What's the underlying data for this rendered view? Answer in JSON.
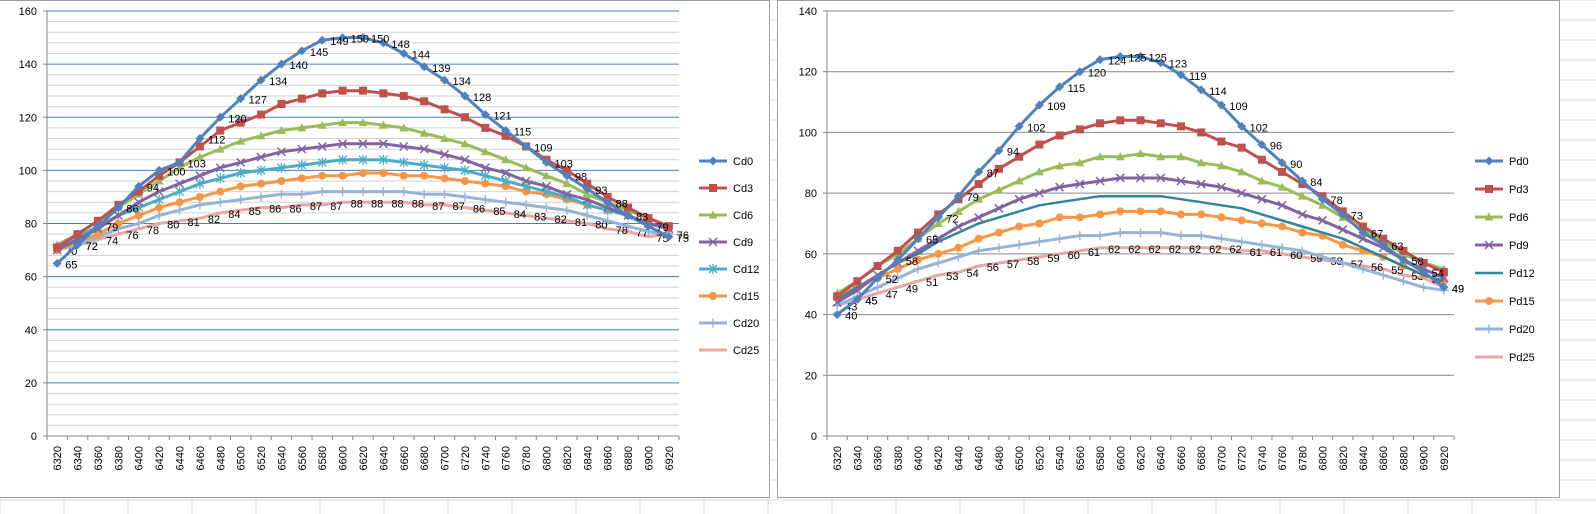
{
  "chart_data": [
    {
      "type": "line",
      "title": "",
      "xlabel": "",
      "ylabel": "",
      "ylim": [
        0,
        160
      ],
      "yticks": [
        0,
        20,
        40,
        60,
        80,
        100,
        120,
        140,
        160
      ],
      "categories": [
        6320,
        6340,
        6360,
        6380,
        6400,
        6420,
        6440,
        6460,
        6480,
        6500,
        6520,
        6540,
        6560,
        6580,
        6600,
        6620,
        6640,
        6660,
        6680,
        6700,
        6720,
        6740,
        6760,
        6780,
        6800,
        6820,
        6840,
        6860,
        6880,
        6900,
        6920
      ],
      "legend_position": "right",
      "series": [
        {
          "name": "Cd0",
          "color": "#4f81bd",
          "marker": "diamond",
          "labeled": true,
          "values": [
            65,
            72,
            79,
            86,
            94,
            100,
            103,
            112,
            120,
            127,
            134,
            140,
            145,
            149,
            150,
            150,
            148,
            144,
            139,
            134,
            128,
            121,
            115,
            109,
            103,
            98,
            93,
            88,
            83,
            79,
            75
          ]
        },
        {
          "name": "Cd3",
          "color": "#c0504d",
          "marker": "square",
          "labeled": false,
          "values": [
            71,
            76,
            81,
            87,
            92,
            98,
            103,
            109,
            115,
            118,
            121,
            125,
            127,
            129,
            130,
            130,
            129,
            128,
            126,
            123,
            120,
            116,
            113,
            109,
            104,
            100,
            95,
            90,
            86,
            82,
            79
          ]
        },
        {
          "name": "Cd6",
          "color": "#9bbb59",
          "marker": "triangle",
          "labeled": false,
          "values": [
            72,
            76,
            81,
            86,
            91,
            96,
            101,
            105,
            108,
            111,
            113,
            115,
            116,
            117,
            118,
            118,
            117,
            116,
            114,
            112,
            110,
            107,
            104,
            101,
            98,
            95,
            91,
            88,
            85,
            82,
            79
          ]
        },
        {
          "name": "Cd9",
          "color": "#8064a2",
          "marker": "x",
          "labeled": false,
          "values": [
            70,
            74,
            78,
            83,
            88,
            92,
            95,
            98,
            101,
            103,
            105,
            107,
            108,
            109,
            110,
            110,
            110,
            109,
            108,
            106,
            104,
            101,
            99,
            96,
            94,
            91,
            89,
            86,
            83,
            80,
            78
          ]
        },
        {
          "name": "Cd12",
          "color": "#4bacc6",
          "marker": "star",
          "labeled": false,
          "values": [
            71,
            75,
            79,
            83,
            86,
            89,
            92,
            95,
            97,
            99,
            100,
            101,
            102,
            103,
            104,
            104,
            104,
            103,
            102,
            101,
            100,
            98,
            96,
            94,
            92,
            90,
            87,
            85,
            83,
            80,
            78
          ]
        },
        {
          "name": "Cd15",
          "color": "#f79646",
          "marker": "circle",
          "labeled": false,
          "values": [
            70,
            73,
            76,
            80,
            83,
            86,
            88,
            90,
            92,
            94,
            95,
            96,
            97,
            98,
            98,
            99,
            99,
            98,
            98,
            97,
            96,
            95,
            94,
            92,
            91,
            89,
            87,
            85,
            83,
            80,
            78
          ]
        },
        {
          "name": "Cd20",
          "color": "#95b3d7",
          "marker": "plus",
          "labeled": false,
          "values": [
            70,
            72,
            75,
            78,
            80,
            83,
            85,
            87,
            88,
            89,
            90,
            91,
            91,
            92,
            92,
            92,
            92,
            92,
            91,
            91,
            90,
            89,
            88,
            87,
            86,
            85,
            83,
            81,
            79,
            77,
            76
          ]
        },
        {
          "name": "Cd25",
          "color": "#e6a8a6",
          "marker": "dash",
          "labeled": true,
          "values": [
            70,
            72,
            74,
            76,
            78,
            80,
            81,
            82,
            84,
            85,
            86,
            86,
            87,
            87,
            88,
            88,
            88,
            88,
            87,
            87,
            86,
            85,
            84,
            83,
            82,
            81,
            80,
            78,
            77,
            75,
            76
          ]
        }
      ]
    },
    {
      "type": "line",
      "title": "",
      "xlabel": "",
      "ylabel": "",
      "ylim": [
        0,
        140
      ],
      "yticks": [
        0,
        20,
        40,
        60,
        80,
        100,
        120,
        140
      ],
      "categories": [
        6320,
        6340,
        6360,
        6380,
        6400,
        6420,
        6440,
        6460,
        6480,
        6500,
        6520,
        6540,
        6560,
        6580,
        6600,
        6620,
        6640,
        6660,
        6680,
        6700,
        6720,
        6740,
        6760,
        6780,
        6800,
        6820,
        6840,
        6860,
        6880,
        6900,
        6920
      ],
      "legend_position": "right",
      "series": [
        {
          "name": "Pd0",
          "color": "#4f81bd",
          "marker": "diamond",
          "labeled": true,
          "values": [
            40,
            45,
            52,
            58,
            65,
            72,
            79,
            87,
            94,
            102,
            109,
            115,
            120,
            124,
            125,
            125,
            123,
            119,
            114,
            109,
            102,
            96,
            90,
            84,
            78,
            73,
            67,
            63,
            58,
            54,
            49
          ]
        },
        {
          "name": "Pd3",
          "color": "#c0504d",
          "marker": "square",
          "labeled": false,
          "values": [
            46,
            51,
            56,
            61,
            67,
            73,
            78,
            83,
            88,
            92,
            96,
            99,
            101,
            103,
            104,
            104,
            103,
            102,
            100,
            97,
            95,
            91,
            87,
            83,
            79,
            74,
            69,
            65,
            61,
            57,
            54
          ]
        },
        {
          "name": "Pd6",
          "color": "#9bbb59",
          "marker": "triangle",
          "labeled": false,
          "values": [
            47,
            51,
            56,
            60,
            65,
            70,
            74,
            78,
            81,
            84,
            87,
            89,
            90,
            92,
            92,
            93,
            92,
            92,
            90,
            89,
            87,
            84,
            82,
            79,
            76,
            72,
            68,
            64,
            60,
            57,
            55
          ]
        },
        {
          "name": "Pd9",
          "color": "#8064a2",
          "marker": "x",
          "labeled": false,
          "values": [
            44,
            48,
            53,
            57,
            61,
            65,
            69,
            72,
            75,
            78,
            80,
            82,
            83,
            84,
            85,
            85,
            85,
            84,
            83,
            82,
            80,
            78,
            76,
            73,
            71,
            68,
            65,
            62,
            58,
            55,
            52
          ]
        },
        {
          "name": "Pd12",
          "color": "#31859c",
          "marker": "none",
          "labeled": false,
          "values": [
            45,
            49,
            53,
            57,
            60,
            64,
            67,
            70,
            72,
            74,
            76,
            77,
            78,
            79,
            79,
            79,
            79,
            78,
            77,
            76,
            75,
            73,
            71,
            69,
            67,
            65,
            62,
            59,
            56,
            53,
            51
          ]
        },
        {
          "name": "Pd15",
          "color": "#f79646",
          "marker": "circle",
          "labeled": false,
          "values": [
            46,
            49,
            52,
            55,
            58,
            60,
            62,
            65,
            67,
            69,
            70,
            72,
            72,
            73,
            74,
            74,
            74,
            73,
            73,
            72,
            71,
            70,
            69,
            67,
            66,
            63,
            61,
            59,
            56,
            53,
            51
          ]
        },
        {
          "name": "Pd20",
          "color": "#95b3d7",
          "marker": "plus",
          "labeled": false,
          "values": [
            43,
            46,
            49,
            52,
            55,
            57,
            59,
            61,
            62,
            63,
            64,
            65,
            66,
            66,
            67,
            67,
            67,
            66,
            66,
            65,
            64,
            63,
            62,
            61,
            59,
            57,
            55,
            53,
            51,
            49,
            48
          ]
        },
        {
          "name": "Pd25",
          "color": "#e6a8a6",
          "marker": "dash",
          "labeled": true,
          "values": [
            43,
            45,
            47,
            49,
            51,
            53,
            54,
            56,
            57,
            58,
            59,
            60,
            61,
            62,
            62,
            62,
            62,
            62,
            62,
            62,
            61,
            61,
            60,
            59,
            58,
            57,
            56,
            55,
            53,
            52,
            49
          ]
        }
      ]
    }
  ]
}
